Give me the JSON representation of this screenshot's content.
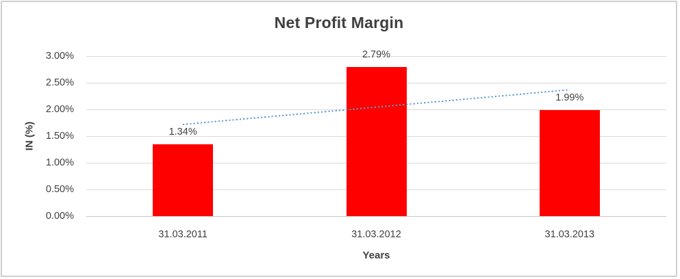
{
  "chart_data": {
    "type": "bar",
    "title": "Net Profit Margin",
    "xlabel": "Years",
    "ylabel": "IN (%)",
    "categories": [
      "31.03.2011",
      "31.03.2012",
      "31.03.2013"
    ],
    "values": [
      1.34,
      2.79,
      1.99
    ],
    "data_labels": [
      "1.34%",
      "2.79%",
      "1.99%"
    ],
    "y_ticks": [
      {
        "value": 3.0,
        "label": "3.00%"
      },
      {
        "value": 2.5,
        "label": "2.50%"
      },
      {
        "value": 2.0,
        "label": "2.00%"
      },
      {
        "value": 1.5,
        "label": "1.50%"
      },
      {
        "value": 1.0,
        "label": "1.00%"
      },
      {
        "value": 0.5,
        "label": "0.50%"
      },
      {
        "value": 0.0,
        "label": "0.00%"
      }
    ],
    "ylim": [
      0,
      3
    ],
    "grid": "horizontal-only",
    "legend": "none",
    "trendline": {
      "type": "linear-dotted",
      "start_value": 1.715,
      "end_value": 2.365
    },
    "colors": {
      "bar": "#ff0000",
      "trendline": "#5b9bd5",
      "gridline": "#d9d9d9",
      "axis_line": "#c6c6c6",
      "text": "#404040",
      "frame_border": "#cfcfcf"
    }
  }
}
